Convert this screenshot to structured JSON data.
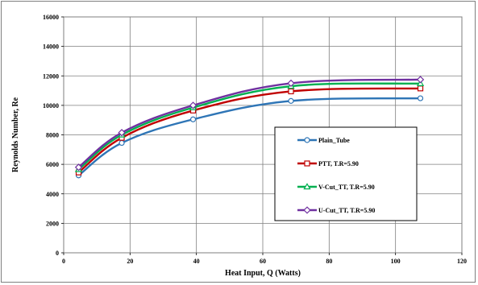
{
  "chart_data": {
    "type": "line",
    "xlabel": "Heat Input, Q (Watts)",
    "ylabel": "Reynolds Number, Re",
    "xlim": [
      0,
      120
    ],
    "ylim": [
      0,
      16000
    ],
    "xticks": [
      0,
      20,
      40,
      60,
      80,
      100,
      120
    ],
    "yticks": [
      0,
      2000,
      4000,
      6000,
      8000,
      10000,
      12000,
      14000,
      16000
    ],
    "grid": true,
    "legend_position": "center-right",
    "series": [
      {
        "name": "Plain_Tube",
        "color": "#2e75b6",
        "marker": "circle",
        "x": [
          4.5,
          17.5,
          39,
          68.5,
          107.5
        ],
        "y": [
          5250,
          7450,
          9050,
          10300,
          10480
        ]
      },
      {
        "name": "PTT, T.R=5.90",
        "color": "#c00000",
        "marker": "square",
        "x": [
          4.5,
          17.5,
          39,
          68.5,
          107.5
        ],
        "y": [
          5450,
          7800,
          9650,
          10950,
          11150
        ]
      },
      {
        "name": "V-Cut_TT, T.R=5.90",
        "color": "#00b050",
        "marker": "triangle",
        "x": [
          4.5,
          17.5,
          39,
          68.5,
          107.5
        ],
        "y": [
          5650,
          8000,
          9850,
          11300,
          11480
        ]
      },
      {
        "name": "U-Cut_TT, T.R=5.90",
        "color": "#7030a0",
        "marker": "diamond",
        "x": [
          4.5,
          17.5,
          39,
          68.5,
          107.5
        ],
        "y": [
          5800,
          8150,
          10000,
          11500,
          11750
        ]
      }
    ]
  }
}
